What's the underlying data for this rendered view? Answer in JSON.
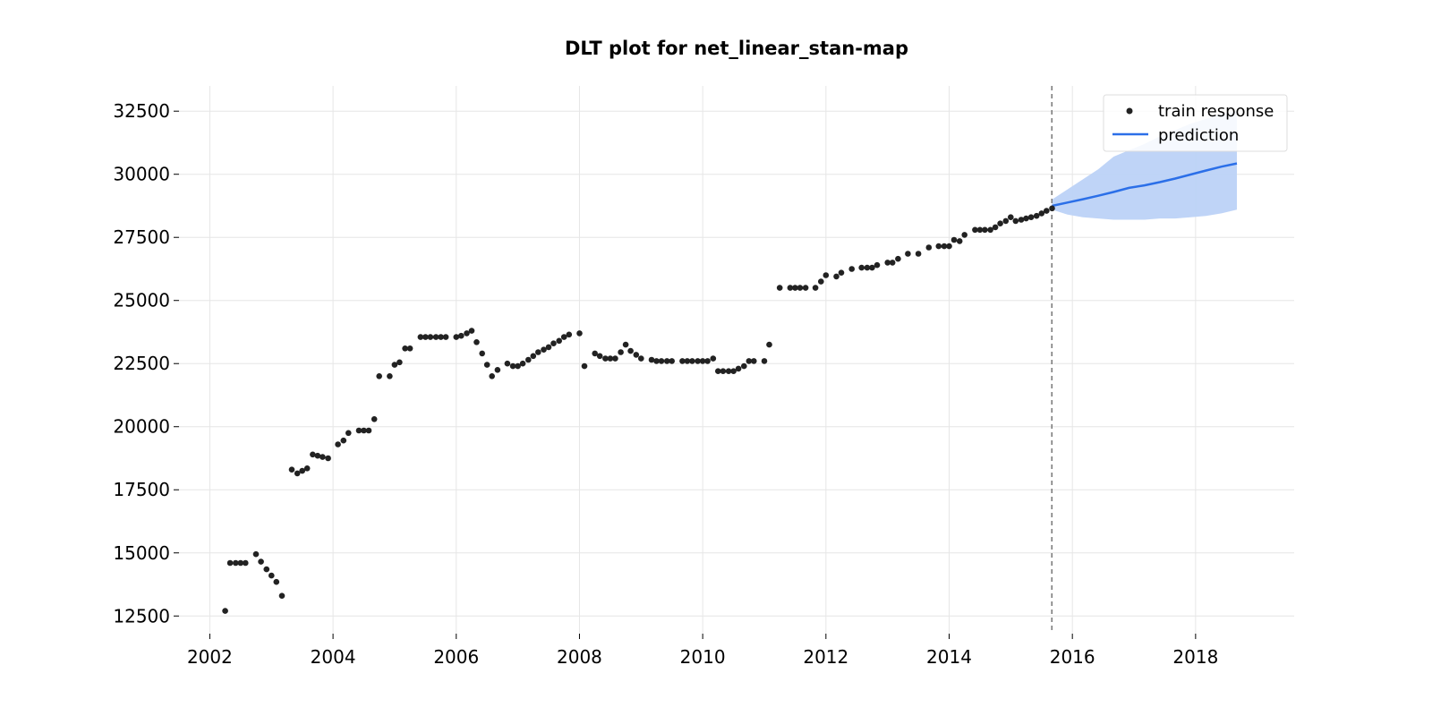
{
  "chart_data": {
    "type": "scatter",
    "title": "DLT plot for net_linear_stan-map",
    "xlabel": "",
    "ylabel": "",
    "xlim": [
      2001.5,
      2019.6
    ],
    "ylim": [
      11800,
      33500
    ],
    "x_ticks": [
      2002,
      2004,
      2006,
      2008,
      2010,
      2012,
      2014,
      2016,
      2018
    ],
    "y_ticks": [
      12500,
      15000,
      17500,
      20000,
      22500,
      25000,
      27500,
      30000,
      32500
    ],
    "grid": true,
    "legend_position": "top-right",
    "train_end": 2015.667,
    "colors": {
      "train_points": "#222222",
      "prediction_line": "#2b6fe8",
      "prediction_band": "#bcd2f7",
      "cutoff_line": "#777777",
      "grid": "#e6e6e6"
    },
    "series": [
      {
        "name": "train response",
        "kind": "scatter",
        "points": [
          [
            2002.25,
            12700
          ],
          [
            2002.33,
            14600
          ],
          [
            2002.42,
            14600
          ],
          [
            2002.5,
            14600
          ],
          [
            2002.58,
            14600
          ],
          [
            2002.75,
            14950
          ],
          [
            2002.83,
            14650
          ],
          [
            2002.92,
            14350
          ],
          [
            2003.0,
            14100
          ],
          [
            2003.08,
            13850
          ],
          [
            2003.17,
            13300
          ],
          [
            2003.33,
            18300
          ],
          [
            2003.42,
            18150
          ],
          [
            2003.5,
            18250
          ],
          [
            2003.58,
            18350
          ],
          [
            2003.67,
            18900
          ],
          [
            2003.75,
            18850
          ],
          [
            2003.83,
            18800
          ],
          [
            2003.92,
            18750
          ],
          [
            2004.08,
            19300
          ],
          [
            2004.17,
            19450
          ],
          [
            2004.25,
            19750
          ],
          [
            2004.42,
            19850
          ],
          [
            2004.5,
            19850
          ],
          [
            2004.58,
            19850
          ],
          [
            2004.67,
            20300
          ],
          [
            2004.75,
            22000
          ],
          [
            2004.92,
            22000
          ],
          [
            2005.0,
            22450
          ],
          [
            2005.08,
            22550
          ],
          [
            2005.17,
            23100
          ],
          [
            2005.25,
            23100
          ],
          [
            2005.42,
            23550
          ],
          [
            2005.5,
            23550
          ],
          [
            2005.58,
            23550
          ],
          [
            2005.67,
            23550
          ],
          [
            2005.75,
            23550
          ],
          [
            2005.83,
            23550
          ],
          [
            2006.0,
            23550
          ],
          [
            2006.08,
            23600
          ],
          [
            2006.17,
            23700
          ],
          [
            2006.25,
            23800
          ],
          [
            2006.33,
            23350
          ],
          [
            2006.42,
            22900
          ],
          [
            2006.5,
            22450
          ],
          [
            2006.58,
            22000
          ],
          [
            2006.67,
            22250
          ],
          [
            2006.83,
            22500
          ],
          [
            2006.92,
            22400
          ],
          [
            2007.0,
            22400
          ],
          [
            2007.08,
            22500
          ],
          [
            2007.17,
            22650
          ],
          [
            2007.25,
            22800
          ],
          [
            2007.33,
            22950
          ],
          [
            2007.42,
            23050
          ],
          [
            2007.5,
            23150
          ],
          [
            2007.58,
            23300
          ],
          [
            2007.67,
            23400
          ],
          [
            2007.75,
            23550
          ],
          [
            2007.83,
            23650
          ],
          [
            2008.0,
            23700
          ],
          [
            2008.08,
            22400
          ],
          [
            2008.25,
            22900
          ],
          [
            2008.33,
            22800
          ],
          [
            2008.42,
            22700
          ],
          [
            2008.5,
            22700
          ],
          [
            2008.58,
            22700
          ],
          [
            2008.67,
            22950
          ],
          [
            2008.75,
            23250
          ],
          [
            2008.83,
            23000
          ],
          [
            2008.92,
            22850
          ],
          [
            2009.0,
            22700
          ],
          [
            2009.17,
            22650
          ],
          [
            2009.25,
            22600
          ],
          [
            2009.33,
            22600
          ],
          [
            2009.42,
            22600
          ],
          [
            2009.5,
            22600
          ],
          [
            2009.67,
            22600
          ],
          [
            2009.75,
            22600
          ],
          [
            2009.83,
            22600
          ],
          [
            2009.92,
            22600
          ],
          [
            2010.0,
            22600
          ],
          [
            2010.08,
            22600
          ],
          [
            2010.17,
            22700
          ],
          [
            2010.25,
            22200
          ],
          [
            2010.33,
            22200
          ],
          [
            2010.42,
            22200
          ],
          [
            2010.5,
            22200
          ],
          [
            2010.58,
            22300
          ],
          [
            2010.67,
            22400
          ],
          [
            2010.75,
            22600
          ],
          [
            2010.83,
            22600
          ],
          [
            2011.0,
            22600
          ],
          [
            2011.08,
            23250
          ],
          [
            2011.25,
            25500
          ],
          [
            2011.42,
            25500
          ],
          [
            2011.5,
            25500
          ],
          [
            2011.58,
            25500
          ],
          [
            2011.67,
            25500
          ],
          [
            2011.83,
            25500
          ],
          [
            2011.92,
            25750
          ],
          [
            2012.0,
            26000
          ],
          [
            2012.17,
            25950
          ],
          [
            2012.25,
            26100
          ],
          [
            2012.42,
            26250
          ],
          [
            2012.58,
            26300
          ],
          [
            2012.67,
            26300
          ],
          [
            2012.75,
            26300
          ],
          [
            2012.83,
            26400
          ],
          [
            2013.0,
            26500
          ],
          [
            2013.08,
            26500
          ],
          [
            2013.17,
            26650
          ],
          [
            2013.33,
            26850
          ],
          [
            2013.5,
            26850
          ],
          [
            2013.67,
            27100
          ],
          [
            2013.83,
            27150
          ],
          [
            2013.92,
            27150
          ],
          [
            2014.0,
            27150
          ],
          [
            2014.08,
            27400
          ],
          [
            2014.17,
            27350
          ],
          [
            2014.25,
            27600
          ],
          [
            2014.42,
            27800
          ],
          [
            2014.5,
            27800
          ],
          [
            2014.58,
            27800
          ],
          [
            2014.67,
            27800
          ],
          [
            2014.75,
            27900
          ],
          [
            2014.83,
            28050
          ],
          [
            2014.92,
            28150
          ],
          [
            2015.0,
            28300
          ],
          [
            2015.08,
            28150
          ],
          [
            2015.17,
            28200
          ],
          [
            2015.25,
            28250
          ],
          [
            2015.33,
            28300
          ],
          [
            2015.42,
            28350
          ],
          [
            2015.5,
            28450
          ],
          [
            2015.58,
            28550
          ],
          [
            2015.67,
            28650
          ]
        ]
      },
      {
        "name": "prediction",
        "kind": "line",
        "x": [
          2015.67,
          2015.92,
          2016.17,
          2016.42,
          2016.67,
          2016.92,
          2017.17,
          2017.42,
          2017.67,
          2017.92,
          2018.17,
          2018.42,
          2018.67
        ],
        "y": [
          28750,
          28880,
          29010,
          29150,
          29300,
          29460,
          29560,
          29690,
          29830,
          29990,
          30150,
          30300,
          30430
        ],
        "lower": [
          28600,
          28400,
          28300,
          28250,
          28200,
          28200,
          28200,
          28250,
          28250,
          28300,
          28350,
          28450,
          28600
        ],
        "upper": [
          29000,
          29400,
          29800,
          30200,
          30700,
          30950,
          31200,
          31500,
          31750,
          32000,
          32200,
          32400,
          32500
        ]
      }
    ]
  }
}
